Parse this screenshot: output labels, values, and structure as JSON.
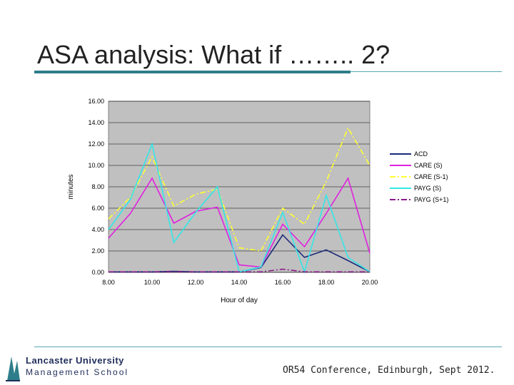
{
  "slide": {
    "title": "ASA analysis: What if …….. 2?",
    "footer": "OR54 Conference, Edinburgh, Sept 2012.",
    "logo_line1": "Lancaster University",
    "logo_line2": "Management School"
  },
  "colors": {
    "accent": "#2e7d8a",
    "plot_background": "#c0c0c0"
  },
  "chart_data": {
    "type": "line",
    "title": "",
    "xlabel": "Hour of day",
    "ylabel": "minutes",
    "x": [
      8,
      9,
      10,
      11,
      12,
      13,
      14,
      15,
      16,
      17,
      18,
      19,
      20
    ],
    "x_tick_labels": [
      "8.00",
      "10.00",
      "12.00",
      "14.00",
      "16.00",
      "18.00",
      "20.00"
    ],
    "x_tick_values": [
      8,
      10,
      12,
      14,
      16,
      18,
      20
    ],
    "y_tick_labels": [
      "0.00",
      "2.00",
      "4.00",
      "6.00",
      "8.00",
      "10.00",
      "12.00",
      "14.00",
      "16.00"
    ],
    "ylim": [
      0,
      16
    ],
    "xlim": [
      8,
      20
    ],
    "grid": true,
    "legend_position": "right",
    "series": [
      {
        "name": "ACD",
        "color": "#1a2a7a",
        "dash": "solid",
        "values": [
          0.05,
          0.05,
          0.05,
          0.1,
          0.05,
          0.05,
          0.05,
          0.45,
          3.5,
          1.4,
          2.1,
          1.1,
          0.05
        ]
      },
      {
        "name": "CARE (S)",
        "color": "#e020e0",
        "dash": "solid",
        "values": [
          3.2,
          5.5,
          8.8,
          4.6,
          5.7,
          6.1,
          0.7,
          0.5,
          4.5,
          2.4,
          5.5,
          8.8,
          1.8
        ]
      },
      {
        "name": "CARE (S-1)",
        "color": "#ffff33",
        "dash": "dashdot",
        "values": [
          5.0,
          7.0,
          10.8,
          6.2,
          7.3,
          7.8,
          2.3,
          2.0,
          6.0,
          4.5,
          8.5,
          13.5,
          10.0
        ]
      },
      {
        "name": "PAYG (S)",
        "color": "#33e6e6",
        "dash": "solid",
        "values": [
          4.0,
          6.8,
          12.0,
          2.8,
          5.6,
          8.0,
          0.05,
          0.5,
          5.6,
          0.05,
          7.2,
          1.4,
          0.05
        ]
      },
      {
        "name": "PAYG (S+1)",
        "color": "#8a1a8a",
        "dash": "dashdot",
        "values": [
          0.05,
          0.05,
          0.05,
          0.05,
          0.05,
          0.05,
          0.05,
          0.05,
          0.3,
          0.05,
          0.05,
          0.05,
          0.05
        ]
      }
    ]
  }
}
